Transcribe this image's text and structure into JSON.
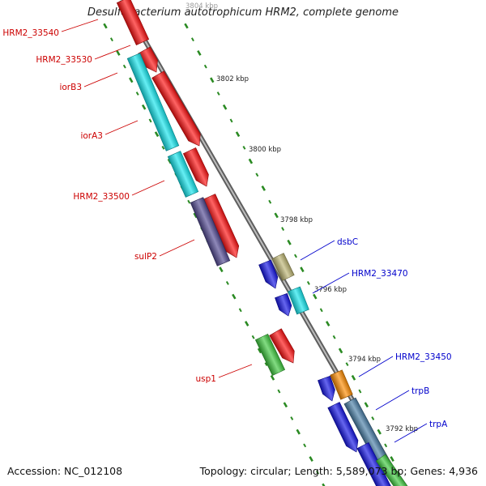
{
  "title": "Desulfobacterium autotrophicum HRM2, complete genome",
  "footer": {
    "accession": "Accession: NC_012108",
    "topology": "Topology: circular; Length: 5,589,073 bp; Genes: 4,936"
  },
  "colors": {
    "backbone": "#8f8f8f",
    "tick": "#2a8a22",
    "tick_label": "#222222",
    "label_left": "#cc0000",
    "label_right": "#0000cc",
    "red": "#ff1010",
    "cyan": "#14e6ee",
    "violet": "#534a94",
    "green": "#3ec93e",
    "blue": "#1414e6",
    "khaki": "#bdb573",
    "orange": "#ff8c00",
    "steel": "#4a7fa8"
  },
  "scale_labels": [
    {
      "id": "3804",
      "text": "3804 kbp"
    },
    {
      "id": "3802",
      "text": "3802 kbp"
    },
    {
      "id": "3800",
      "text": "3800 kbp"
    },
    {
      "id": "3798",
      "text": "3798 kbp"
    },
    {
      "id": "3796",
      "text": "3796 kbp"
    },
    {
      "id": "3794",
      "text": "3794 kbp"
    },
    {
      "id": "3792",
      "text": "3792 kbp"
    }
  ],
  "gene_labels": [
    {
      "id": "HRM2_33540",
      "text": "HRM2_33540",
      "side": "left"
    },
    {
      "id": "HRM2_33530",
      "text": "HRM2_33530",
      "side": "left"
    },
    {
      "id": "iorB3",
      "text": "iorB3",
      "side": "left"
    },
    {
      "id": "iorA3",
      "text": "iorA3",
      "side": "left"
    },
    {
      "id": "HRM2_33500",
      "text": "HRM2_33500",
      "side": "left"
    },
    {
      "id": "sulP2",
      "text": "sulP2",
      "side": "left"
    },
    {
      "id": "usp1",
      "text": "usp1",
      "side": "left"
    },
    {
      "id": "dsbC",
      "text": "dsbC",
      "side": "right"
    },
    {
      "id": "HRM2_33470",
      "text": "HRM2_33470",
      "side": "right"
    },
    {
      "id": "HRM2_33450",
      "text": "HRM2_33450",
      "side": "right"
    },
    {
      "id": "trpB",
      "text": "trpB",
      "side": "right"
    },
    {
      "id": "trpA",
      "text": "trpA",
      "side": "right"
    }
  ],
  "features": [
    {
      "id": "f-red-top",
      "color": "red",
      "arrow": false
    },
    {
      "id": "f-red-33530",
      "color": "red",
      "arrow": true
    },
    {
      "id": "f-red-iorB3",
      "color": "red",
      "arrow": true
    },
    {
      "id": "f-cyan-iorB3",
      "color": "cyan",
      "arrow": false
    },
    {
      "id": "f-red-iorA3",
      "color": "red",
      "arrow": true
    },
    {
      "id": "f-cyan-iorA3",
      "color": "cyan",
      "arrow": false
    },
    {
      "id": "f-red-33500",
      "color": "red",
      "arrow": true
    },
    {
      "id": "f-violet-sulP2",
      "color": "violet",
      "arrow": false
    },
    {
      "id": "f-green-usp1",
      "color": "green",
      "arrow": false
    },
    {
      "id": "f-red-usp1",
      "color": "red",
      "arrow": true
    },
    {
      "id": "f-blue-dsbC",
      "color": "blue",
      "arrow": true
    },
    {
      "id": "f-khaki-dsbC",
      "color": "khaki",
      "arrow": false
    },
    {
      "id": "f-blue-33470",
      "color": "blue",
      "arrow": true
    },
    {
      "id": "f-cyan-33470",
      "color": "cyan",
      "arrow": false
    },
    {
      "id": "f-blue-33450",
      "color": "blue",
      "arrow": true
    },
    {
      "id": "f-orange-33450",
      "color": "orange",
      "arrow": false
    },
    {
      "id": "f-blue-trpB",
      "color": "blue",
      "arrow": true
    },
    {
      "id": "f-steel-trpB",
      "color": "steel",
      "arrow": false
    },
    {
      "id": "f-blue-bottom",
      "color": "blue",
      "arrow": false
    },
    {
      "id": "f-green-bottom",
      "color": "green",
      "arrow": false
    }
  ]
}
